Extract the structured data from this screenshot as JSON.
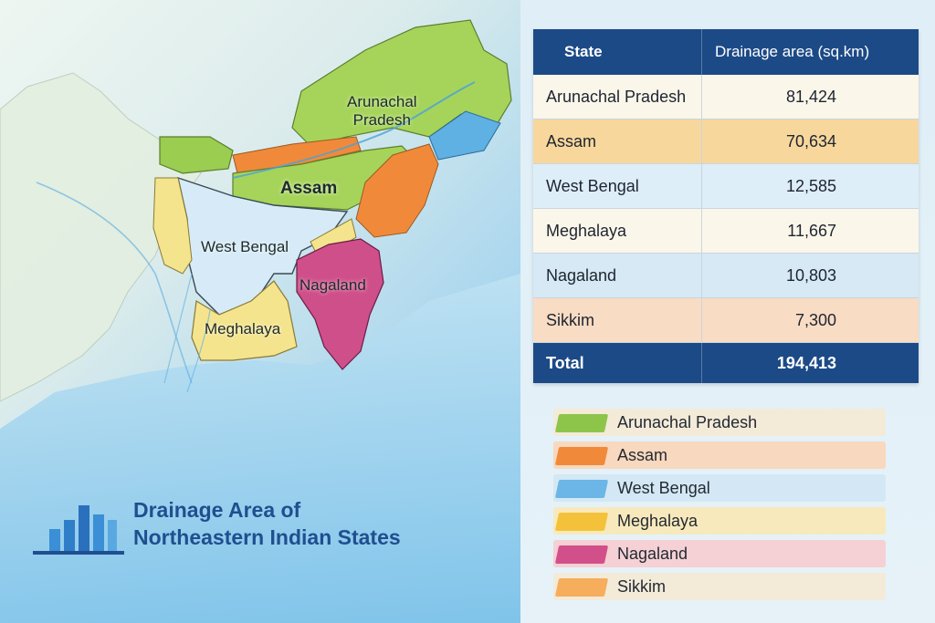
{
  "map": {
    "regions": [
      {
        "id": "arunachal",
        "label": "Arunachal\nPradesh",
        "color": "#9acd50"
      },
      {
        "id": "assam",
        "label": "Assam",
        "color": "#9acd50"
      },
      {
        "id": "west-bengal",
        "label": "West Bengal",
        "color": "#cfe7f6"
      },
      {
        "id": "nagaland",
        "label": "Nagaland",
        "color": "#cf4f8a"
      },
      {
        "id": "meghalaya",
        "label": "Meghalaya",
        "color": "#f4df8a"
      }
    ],
    "title_line1": "Drainage Area of",
    "title_line2": "Northeastern Indian States"
  },
  "table": {
    "headers": {
      "state": "State",
      "area": "Drainage area (sq.km)"
    },
    "rows": [
      {
        "state": "Arunachal Pradesh",
        "area": "81,424",
        "bg": "#fbf6ea"
      },
      {
        "state": "Assam",
        "area": "70,634",
        "bg": "#f8d79c"
      },
      {
        "state": "West Bengal",
        "area": "12,585",
        "bg": "#deeef8"
      },
      {
        "state": "Meghalaya",
        "area": "11,667",
        "bg": "#fbf6ea"
      },
      {
        "state": "Nagaland",
        "area": "10,803",
        "bg": "#d6e9f4"
      },
      {
        "state": "Sikkim",
        "area": "7,300",
        "bg": "#f9dcc4"
      }
    ],
    "total": {
      "label": "Total",
      "value": "194,413"
    }
  },
  "legend": [
    {
      "label": "Arunachal Pradesh",
      "color": "#8cc54a",
      "bg": "#f3ead8"
    },
    {
      "label": "Assam",
      "color": "#f08a3a",
      "bg": "#f8d8be"
    },
    {
      "label": "West Bengal",
      "color": "#6bb6e6",
      "bg": "#d3e8f4"
    },
    {
      "label": "Meghalaya",
      "color": "#f4c23a",
      "bg": "#f8e9bc"
    },
    {
      "label": "Nagaland",
      "color": "#d2508a",
      "bg": "#f5d0d4"
    },
    {
      "label": "Sikkim",
      "color": "#f6ad5c",
      "bg": "#f3ead8"
    }
  ]
}
